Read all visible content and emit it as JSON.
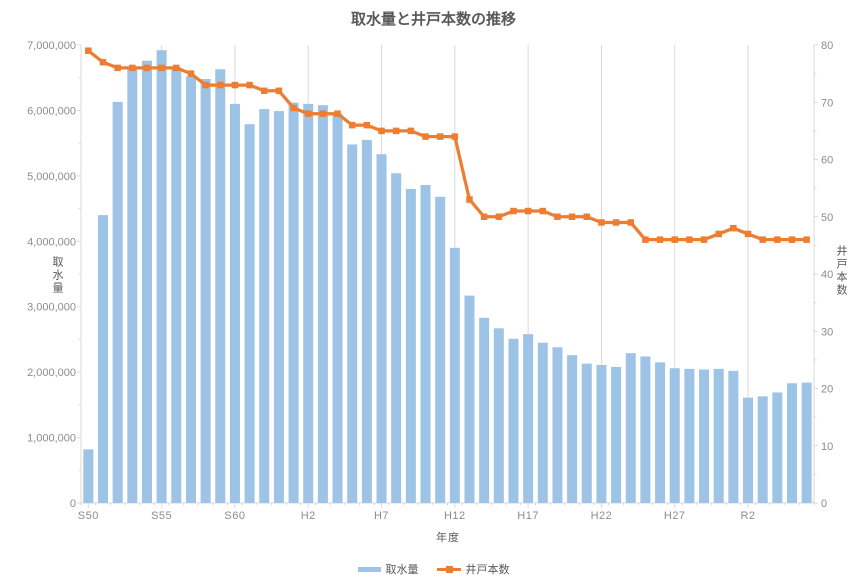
{
  "title": "取水量と井戸本数の推移",
  "colors": {
    "bar": "#9DC3E6",
    "line": "#ED7D31",
    "title_text": "#595959",
    "axis_label": "#8C8C8C",
    "axis_line": "#D9D9D9",
    "gridline": "#D9D9D9"
  },
  "legend": {
    "bar_label": "取水量",
    "line_label": "井戸本数"
  },
  "chart_data": {
    "type": "bar+line combo",
    "title": "取水量と井戸本数の推移",
    "categories": [
      "S50",
      "S51",
      "S52",
      "S53",
      "S54",
      "S55",
      "S56",
      "S57",
      "S58",
      "S59",
      "S60",
      "S61",
      "S62",
      "S63",
      "H1",
      "H2",
      "H3",
      "H4",
      "H5",
      "H6",
      "H7",
      "H8",
      "H9",
      "H10",
      "H11",
      "H12",
      "H13",
      "H14",
      "H15",
      "H16",
      "H17",
      "H18",
      "H19",
      "H20",
      "H21",
      "H22",
      "H23",
      "H24",
      "H25",
      "H26",
      "H27",
      "H28",
      "H29",
      "H30",
      "R1",
      "R2",
      "R3",
      "R4",
      "R5",
      "R6"
    ],
    "x_ticks": [
      {
        "index": 0,
        "label": "S50"
      },
      {
        "index": 5,
        "label": "S55"
      },
      {
        "index": 10,
        "label": "S60"
      },
      {
        "index": 15,
        "label": "H2"
      },
      {
        "index": 20,
        "label": "H7"
      },
      {
        "index": 25,
        "label": "H12"
      },
      {
        "index": 30,
        "label": "H17"
      },
      {
        "index": 35,
        "label": "H22"
      },
      {
        "index": 40,
        "label": "H27"
      },
      {
        "index": 45,
        "label": "R2"
      }
    ],
    "series": [
      {
        "name": "取水量",
        "type": "bar",
        "axis": "left",
        "values": [
          820000,
          4400000,
          6130000,
          6630000,
          6760000,
          6920000,
          6660000,
          6520000,
          6480000,
          6630000,
          6100000,
          5790000,
          6020000,
          5990000,
          6120000,
          6100000,
          6080000,
          5950000,
          5480000,
          5550000,
          5330000,
          5040000,
          4800000,
          4860000,
          4680000,
          3900000,
          3170000,
          2830000,
          2670000,
          2510000,
          2580000,
          2450000,
          2380000,
          2260000,
          2130000,
          2110000,
          2080000,
          2290000,
          2240000,
          2150000,
          2060000,
          2050000,
          2040000,
          2050000,
          2020000,
          1610000,
          1630000,
          1690000,
          1830000,
          1840000
        ]
      },
      {
        "name": "井戸本数",
        "type": "line",
        "axis": "right",
        "values": [
          79,
          77,
          76,
          76,
          76,
          76,
          76,
          75,
          73,
          73,
          73,
          73,
          72,
          72,
          69,
          68,
          68,
          68,
          66,
          66,
          65,
          65,
          65,
          64,
          64,
          64,
          53,
          50,
          50,
          51,
          51,
          51,
          50,
          50,
          50,
          49,
          49,
          49,
          46,
          46,
          46,
          46,
          46,
          47,
          48,
          47,
          46,
          46,
          46,
          46
        ]
      }
    ],
    "left_axis": {
      "title": "取水量",
      "min": 0,
      "max": 7000000,
      "step": 1000000,
      "tick_labels": [
        "0",
        "1,000,000",
        "2,000,000",
        "3,000,000",
        "4,000,000",
        "5,000,000",
        "6,000,000",
        "7,000,000"
      ]
    },
    "right_axis": {
      "title": "井戸本数",
      "min": 0,
      "max": 80,
      "step": 10,
      "tick_labels": [
        "0",
        "10",
        "20",
        "30",
        "40",
        "50",
        "60",
        "70",
        "80"
      ]
    },
    "x_axis": {
      "title": "年度"
    },
    "grid": "vertical only, at 5-year ticks",
    "legend_position": "bottom"
  }
}
